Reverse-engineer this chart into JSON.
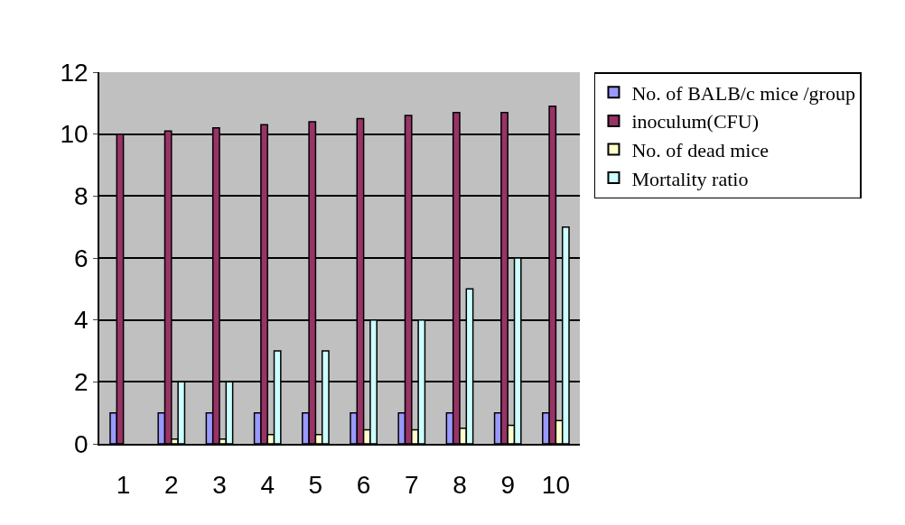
{
  "chart_data": {
    "type": "bar",
    "categories": [
      "1",
      "2",
      "3",
      "4",
      "5",
      "6",
      "7",
      "8",
      "9",
      "10"
    ],
    "series": [
      {
        "name": "No. of BALB/c mice /group",
        "color": "#9999ff",
        "values": [
          1,
          1,
          1,
          1,
          1,
          1,
          1,
          1,
          1,
          1
        ]
      },
      {
        "name": "inoculum(CFU)",
        "color": "#993366",
        "values": [
          10,
          10.1,
          10.2,
          10.3,
          10.4,
          10.5,
          10.6,
          10.7,
          10.7,
          10.9
        ]
      },
      {
        "name": "No. of dead mice",
        "color": "#ffffcc",
        "values": [
          null,
          0.15,
          0.15,
          0.3,
          0.3,
          0.45,
          0.45,
          0.5,
          0.6,
          0.75
        ]
      },
      {
        "name": "Mortality ratio",
        "color": "#ccffff",
        "values": [
          null,
          2,
          2,
          3,
          3,
          4,
          4,
          5,
          6,
          7
        ]
      }
    ],
    "ylim": [
      0,
      12
    ],
    "yticks": [
      0,
      2,
      4,
      6,
      8,
      10,
      12
    ],
    "grid": "y",
    "legend": "right"
  }
}
